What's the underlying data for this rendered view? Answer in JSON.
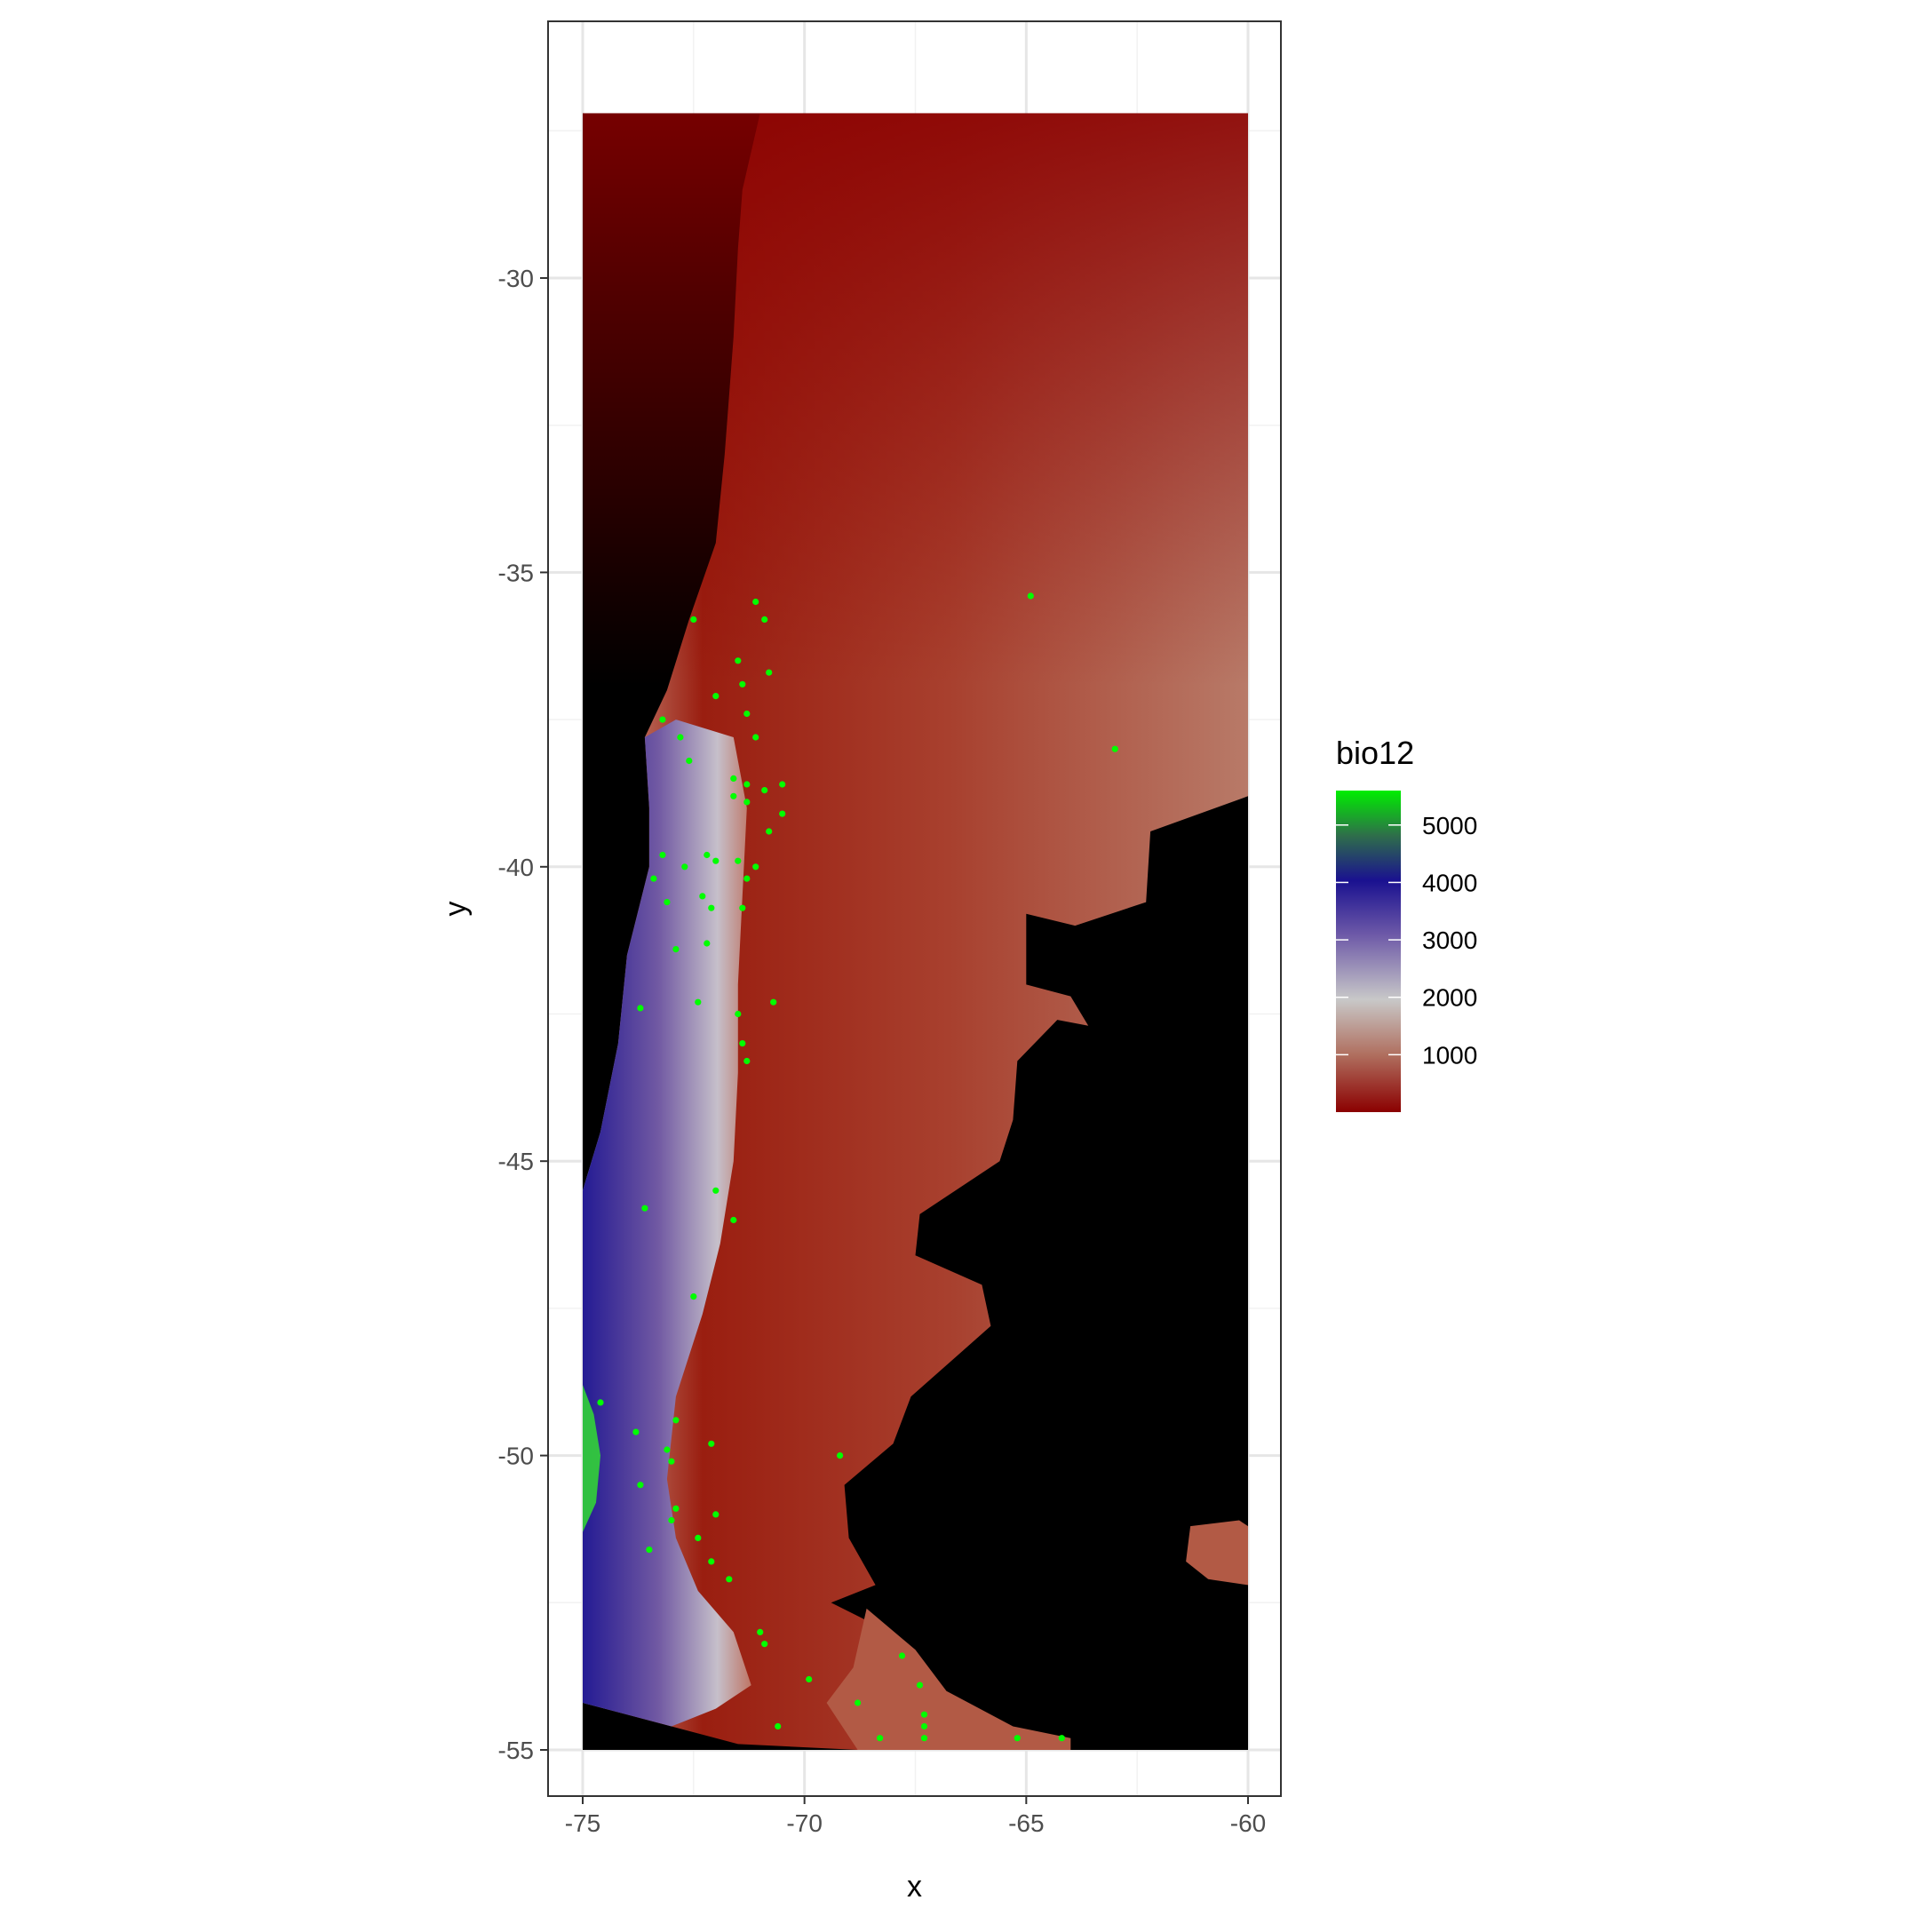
{
  "chart_data": {
    "type": "heatmap",
    "title": "",
    "xlabel": "x",
    "ylabel": "y",
    "xlim": [
      -75,
      -60
    ],
    "ylim": [
      -55,
      -27
    ],
    "x_ticks": [
      -75,
      -70,
      -65,
      -60
    ],
    "y_ticks": [
      -30,
      -35,
      -40,
      -45,
      -50,
      -55
    ],
    "x_tick_labels": [
      "-75",
      "-70",
      "-65",
      "-60"
    ],
    "y_tick_labels": [
      "-30",
      "-35",
      "-40",
      "-45",
      "-50",
      "-55"
    ],
    "grid": true,
    "background_na_color": "#000000",
    "legend": {
      "title": "bio12",
      "position": "right",
      "min": 0,
      "max": 5600,
      "breaks": [
        5000,
        4000,
        3000,
        2000,
        1000
      ],
      "break_labels": [
        "5000",
        "4000",
        "3000",
        "2000",
        "1000"
      ],
      "colors": [
        "#8b0000",
        "#b07060",
        "#c8c8c8",
        "#6e5aa8",
        "#1a1190",
        "#2e6e4a",
        "#00ee00"
      ]
    },
    "points": {
      "color": "#00ff00",
      "coords": [
        [
          -72.5,
          -35.8
        ],
        [
          -71.1,
          -35.5
        ],
        [
          -70.9,
          -35.8
        ],
        [
          -71.5,
          -36.5
        ],
        [
          -70.8,
          -36.7
        ],
        [
          -71.4,
          -36.9
        ],
        [
          -72.0,
          -37.1
        ],
        [
          -71.3,
          -37.4
        ],
        [
          -73.2,
          -37.5
        ],
        [
          -72.8,
          -37.8
        ],
        [
          -71.1,
          -37.8
        ],
        [
          -72.6,
          -38.2
        ],
        [
          -71.6,
          -38.5
        ],
        [
          -71.3,
          -38.6
        ],
        [
          -71.6,
          -38.8
        ],
        [
          -70.5,
          -38.6
        ],
        [
          -70.9,
          -38.7
        ],
        [
          -70.5,
          -39.1
        ],
        [
          -71.3,
          -38.9
        ],
        [
          -70.8,
          -39.4
        ],
        [
          -73.2,
          -39.8
        ],
        [
          -72.7,
          -40.0
        ],
        [
          -72.2,
          -39.8
        ],
        [
          -72.0,
          -39.9
        ],
        [
          -71.5,
          -39.9
        ],
        [
          -71.1,
          -40.0
        ],
        [
          -73.4,
          -40.2
        ],
        [
          -71.3,
          -40.2
        ],
        [
          -73.1,
          -40.6
        ],
        [
          -72.3,
          -40.5
        ],
        [
          -72.1,
          -40.7
        ],
        [
          -71.4,
          -40.7
        ],
        [
          -72.9,
          -41.4
        ],
        [
          -72.2,
          -41.3
        ],
        [
          -73.7,
          -42.4
        ],
        [
          -72.4,
          -42.3
        ],
        [
          -70.7,
          -42.3
        ],
        [
          -71.5,
          -42.5
        ],
        [
          -71.4,
          -43.0
        ],
        [
          -71.3,
          -43.3
        ],
        [
          -73.6,
          -45.8
        ],
        [
          -72.0,
          -45.5
        ],
        [
          -71.6,
          -46.0
        ],
        [
          -72.5,
          -47.3
        ],
        [
          -74.6,
          -49.1
        ],
        [
          -73.8,
          -49.6
        ],
        [
          -72.9,
          -49.4
        ],
        [
          -72.1,
          -49.8
        ],
        [
          -73.1,
          -49.9
        ],
        [
          -73.0,
          -50.1
        ],
        [
          -69.2,
          -50.0
        ],
        [
          -73.7,
          -50.5
        ],
        [
          -72.9,
          -50.9
        ],
        [
          -72.0,
          -51.0
        ],
        [
          -73.0,
          -51.1
        ],
        [
          -73.5,
          -51.6
        ],
        [
          -72.4,
          -51.4
        ],
        [
          -72.1,
          -51.8
        ],
        [
          -71.7,
          -52.1
        ],
        [
          -71.0,
          -53.0
        ],
        [
          -70.9,
          -53.2
        ],
        [
          -67.8,
          -53.4
        ],
        [
          -69.9,
          -53.8
        ],
        [
          -67.4,
          -53.9
        ],
        [
          -68.8,
          -54.2
        ],
        [
          -67.3,
          -54.4
        ],
        [
          -70.6,
          -54.6
        ],
        [
          -67.3,
          -54.6
        ],
        [
          -68.3,
          -54.8
        ],
        [
          -67.3,
          -54.8
        ],
        [
          -64.9,
          -35.4
        ],
        [
          -63.0,
          -38.0
        ],
        [
          -65.2,
          -54.8
        ],
        [
          -64.2,
          -54.8
        ]
      ]
    }
  }
}
